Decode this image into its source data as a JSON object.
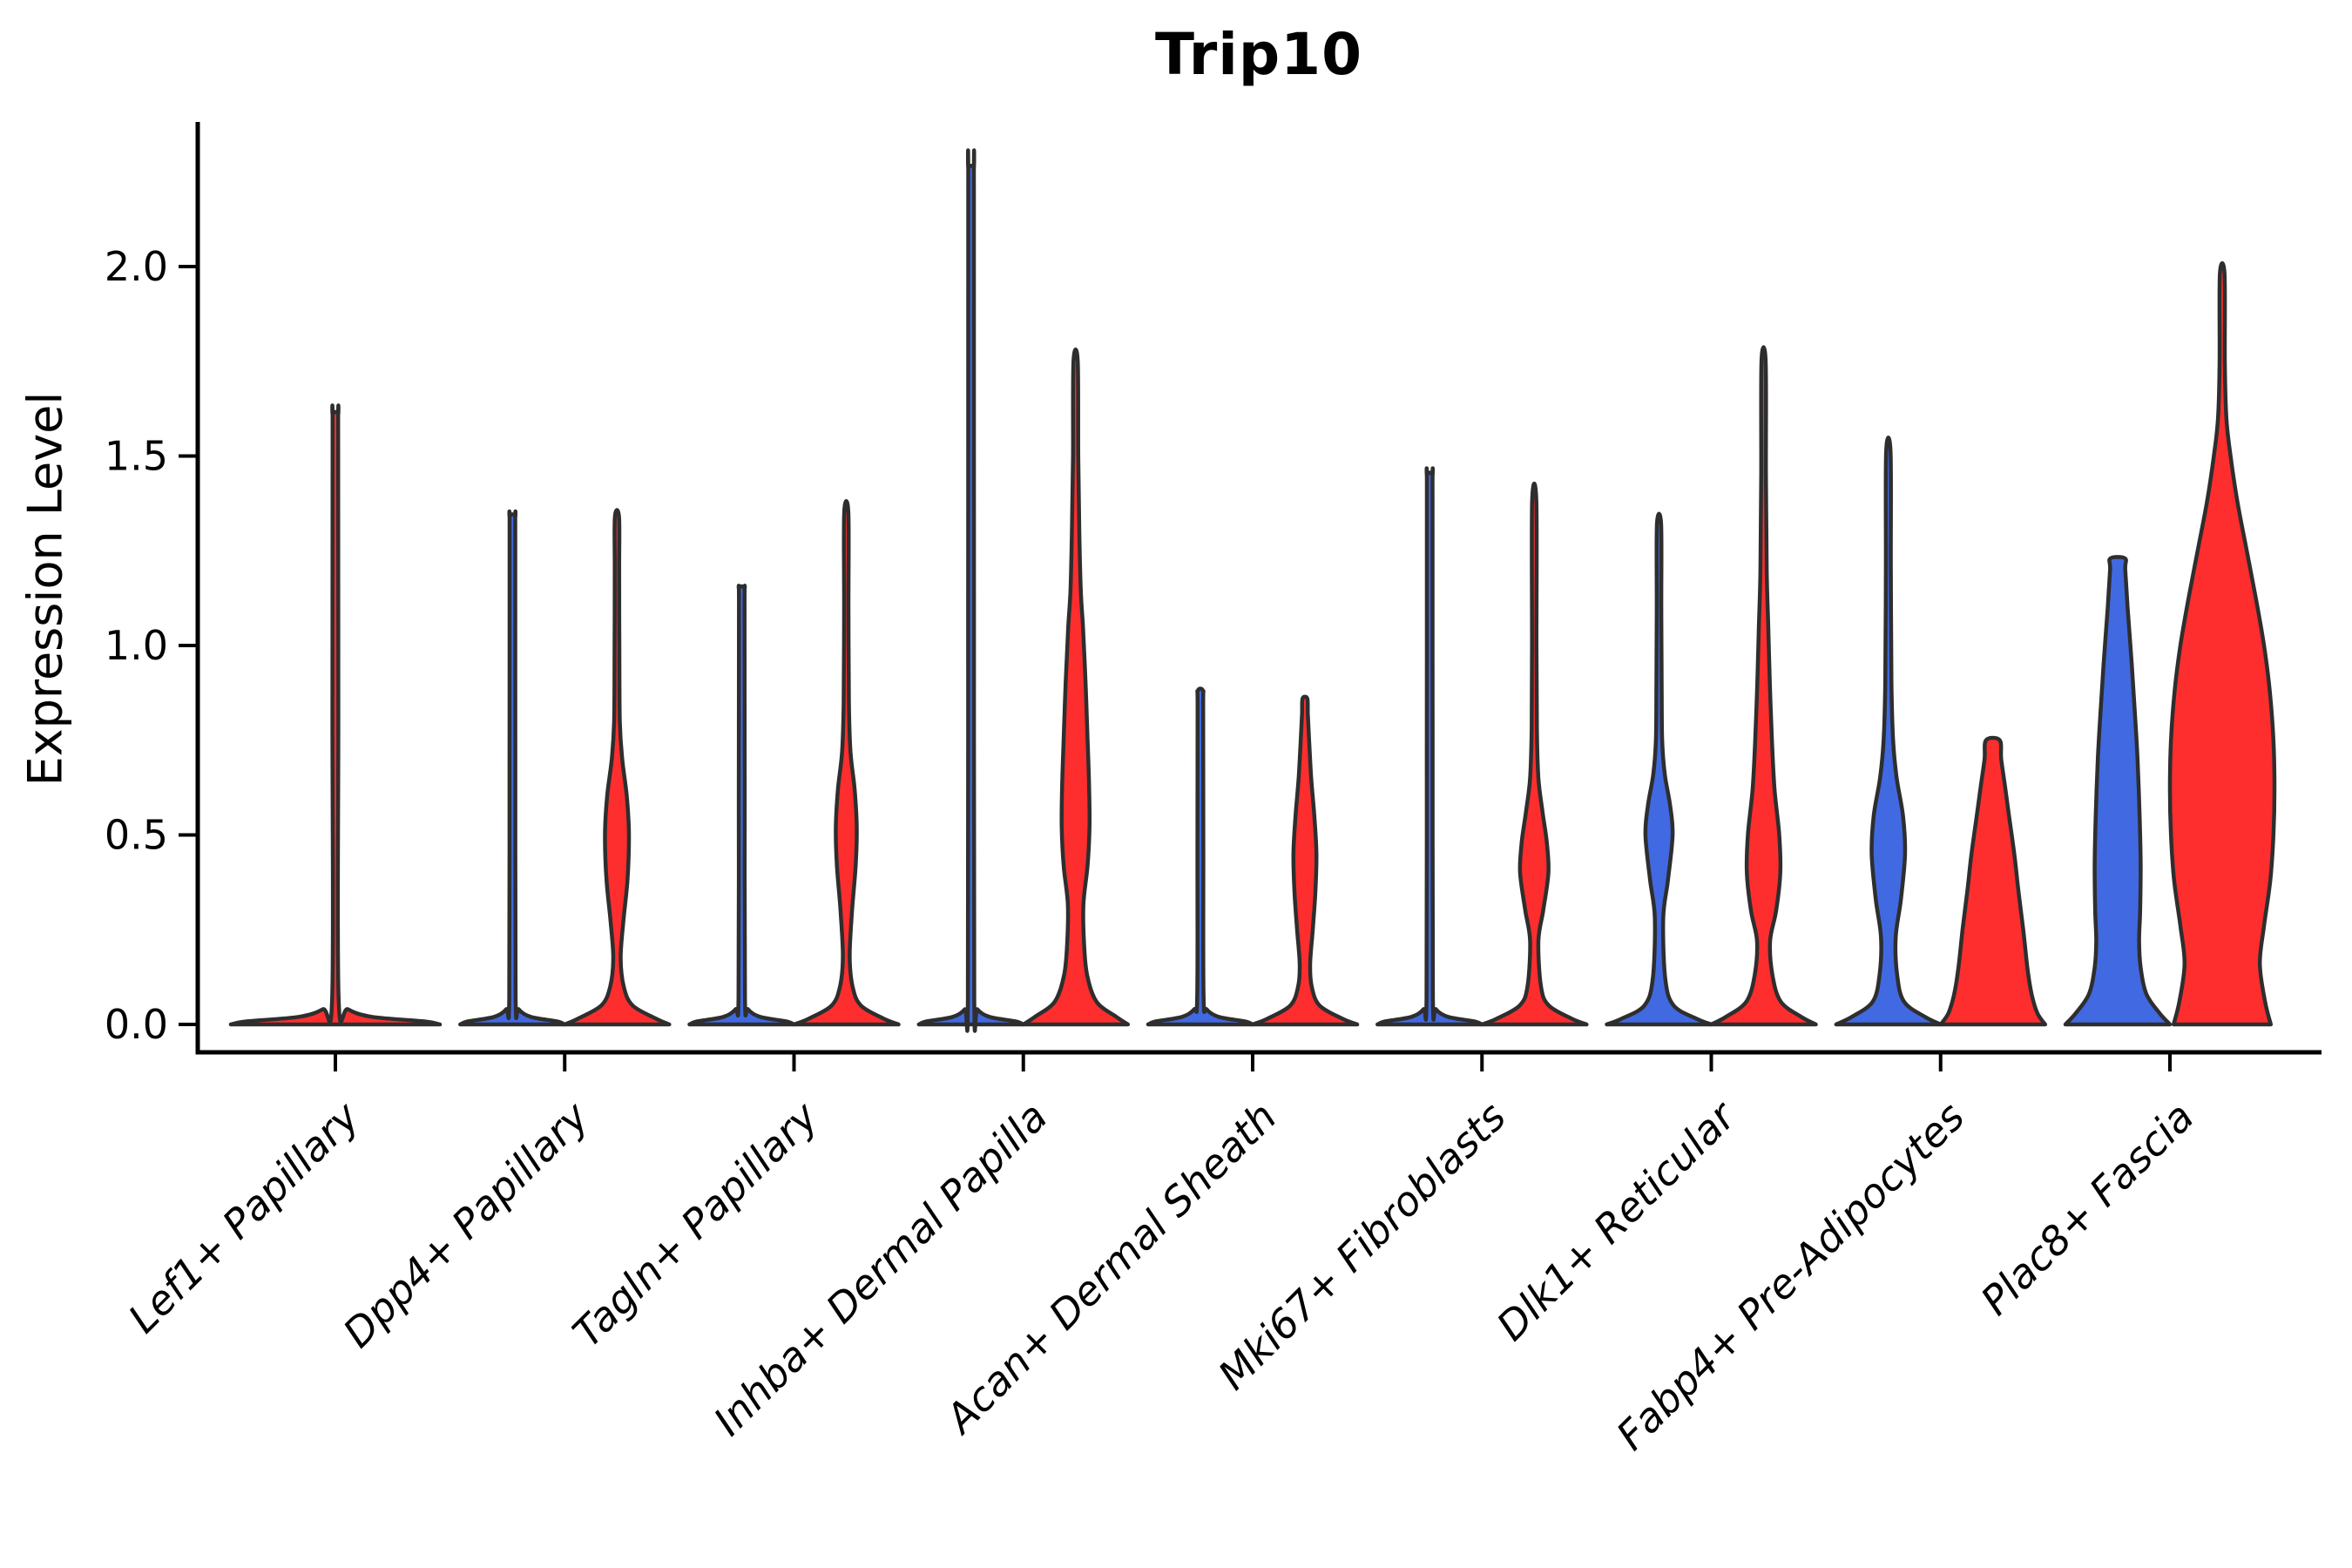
{
  "chart_data": {
    "type": "violin",
    "title": "Trip10",
    "ylabel": "Expression Level",
    "xlabel": "",
    "grid": false,
    "legend_position": "none",
    "ylim": [
      -0.08,
      2.38
    ],
    "y_ticks": [
      {
        "label": "0.0",
        "value": 0.0
      },
      {
        "label": "0.5",
        "value": 0.5
      },
      {
        "label": "1.0",
        "value": 1.0
      },
      {
        "label": "1.5",
        "value": 1.5
      },
      {
        "label": "2.0",
        "value": 2.0
      }
    ],
    "categories": [
      "Lef1+ Papillary",
      "Dpp4+ Papillary",
      "Tagln+ Papillary",
      "Inhba+ Dermal Papilla",
      "Acan+ Dermal Sheath",
      "Mki67+ Fibroblasts",
      "Dlk1+ Reticular",
      "Fabp4+ Pre-Adipocytes",
      "Plac8+ Fascia"
    ],
    "split_colors": {
      "blue": "#4169E1",
      "red": "#FF2E2E"
    },
    "outline_color": "#2e2e2e",
    "axis_color": "#000000",
    "violins": [
      {
        "cat": 0,
        "pos": "single",
        "color": "red",
        "top": 1.61,
        "profile": "spike"
      },
      {
        "cat": 1,
        "pos": "left",
        "color": "blue",
        "top": 1.34,
        "profile": "spike"
      },
      {
        "cat": 1,
        "pos": "right",
        "color": "red",
        "top": 1.34,
        "profile": [
          [
            0,
            1.0
          ],
          [
            0.015,
            0.75
          ],
          [
            0.05,
            0.3
          ],
          [
            0.1,
            0.13
          ],
          [
            0.175,
            0.07
          ],
          [
            0.27,
            0.12
          ],
          [
            0.38,
            0.2
          ],
          [
            0.5,
            0.23
          ],
          [
            0.6,
            0.19
          ],
          [
            0.7,
            0.1
          ],
          [
            0.8,
            0.055
          ],
          [
            1.0,
            0.045
          ],
          [
            1.2,
            0.042
          ],
          [
            1.34,
            0.04
          ]
        ]
      },
      {
        "cat": 2,
        "pos": "left",
        "color": "blue",
        "top": 1.15,
        "profile": "spike"
      },
      {
        "cat": 2,
        "pos": "right",
        "color": "red",
        "top": 1.35,
        "profile": [
          [
            0,
            1.0
          ],
          [
            0.015,
            0.72
          ],
          [
            0.05,
            0.28
          ],
          [
            0.1,
            0.12
          ],
          [
            0.18,
            0.065
          ],
          [
            0.3,
            0.11
          ],
          [
            0.42,
            0.18
          ],
          [
            0.52,
            0.2
          ],
          [
            0.62,
            0.16
          ],
          [
            0.72,
            0.08
          ],
          [
            0.85,
            0.05
          ],
          [
            1.1,
            0.042
          ],
          [
            1.35,
            0.04
          ]
        ]
      },
      {
        "cat": 3,
        "pos": "left",
        "color": "blue",
        "top": 2.26,
        "profile": "spike"
      },
      {
        "cat": 3,
        "pos": "right",
        "color": "red",
        "top": 1.75,
        "profile": [
          [
            0,
            1.0
          ],
          [
            0.02,
            0.78
          ],
          [
            0.06,
            0.4
          ],
          [
            0.13,
            0.22
          ],
          [
            0.22,
            0.16
          ],
          [
            0.32,
            0.15
          ],
          [
            0.42,
            0.23
          ],
          [
            0.52,
            0.265
          ],
          [
            0.62,
            0.26
          ],
          [
            0.75,
            0.23
          ],
          [
            0.9,
            0.19
          ],
          [
            1.05,
            0.14
          ],
          [
            1.14,
            0.1
          ],
          [
            1.3,
            0.07
          ],
          [
            1.5,
            0.05
          ],
          [
            1.75,
            0.04
          ]
        ]
      },
      {
        "cat": 4,
        "pos": "left",
        "color": "blue",
        "top": 0.88,
        "profile": "spike"
      },
      {
        "cat": 4,
        "pos": "right",
        "color": "red",
        "top": 0.86,
        "profile": [
          [
            0,
            1.0
          ],
          [
            0.015,
            0.72
          ],
          [
            0.05,
            0.28
          ],
          [
            0.1,
            0.13
          ],
          [
            0.16,
            0.1
          ],
          [
            0.25,
            0.15
          ],
          [
            0.35,
            0.2
          ],
          [
            0.45,
            0.22
          ],
          [
            0.55,
            0.18
          ],
          [
            0.65,
            0.12
          ],
          [
            0.75,
            0.08
          ],
          [
            0.82,
            0.055
          ],
          [
            0.86,
            0.045
          ]
        ]
      },
      {
        "cat": 5,
        "pos": "left",
        "color": "blue",
        "top": 1.45,
        "profile": "spike"
      },
      {
        "cat": 5,
        "pos": "right",
        "color": "red",
        "top": 1.38,
        "profile": [
          [
            0,
            1.0
          ],
          [
            0.015,
            0.72
          ],
          [
            0.05,
            0.28
          ],
          [
            0.1,
            0.13
          ],
          [
            0.22,
            0.08
          ],
          [
            0.3,
            0.17
          ],
          [
            0.4,
            0.27
          ],
          [
            0.48,
            0.24
          ],
          [
            0.56,
            0.16
          ],
          [
            0.65,
            0.08
          ],
          [
            0.78,
            0.05
          ],
          [
            1.0,
            0.043
          ],
          [
            1.38,
            0.04
          ]
        ]
      },
      {
        "cat": 6,
        "pos": "left",
        "color": "blue",
        "top": 1.32,
        "profile": [
          [
            0,
            1.0
          ],
          [
            0.015,
            0.72
          ],
          [
            0.05,
            0.28
          ],
          [
            0.12,
            0.12
          ],
          [
            0.28,
            0.08
          ],
          [
            0.38,
            0.17
          ],
          [
            0.5,
            0.26
          ],
          [
            0.58,
            0.21
          ],
          [
            0.66,
            0.11
          ],
          [
            0.75,
            0.06
          ],
          [
            0.9,
            0.05
          ],
          [
            1.1,
            0.044
          ],
          [
            1.32,
            0.04
          ]
        ]
      },
      {
        "cat": 6,
        "pos": "right",
        "color": "red",
        "top": 1.75,
        "profile": [
          [
            0,
            1.0
          ],
          [
            0.02,
            0.72
          ],
          [
            0.06,
            0.33
          ],
          [
            0.13,
            0.17
          ],
          [
            0.22,
            0.125
          ],
          [
            0.3,
            0.24
          ],
          [
            0.4,
            0.32
          ],
          [
            0.5,
            0.3
          ],
          [
            0.62,
            0.21
          ],
          [
            0.75,
            0.16
          ],
          [
            0.9,
            0.12
          ],
          [
            1.05,
            0.09
          ],
          [
            1.2,
            0.06
          ],
          [
            1.45,
            0.045
          ],
          [
            1.75,
            0.04
          ]
        ]
      },
      {
        "cat": 7,
        "pos": "left",
        "color": "blue",
        "top": 1.51,
        "profile": [
          [
            0,
            1.0
          ],
          [
            0.02,
            0.7
          ],
          [
            0.06,
            0.3
          ],
          [
            0.13,
            0.17
          ],
          [
            0.23,
            0.14
          ],
          [
            0.33,
            0.24
          ],
          [
            0.45,
            0.32
          ],
          [
            0.55,
            0.28
          ],
          [
            0.65,
            0.16
          ],
          [
            0.75,
            0.09
          ],
          [
            0.9,
            0.06
          ],
          [
            1.2,
            0.047
          ],
          [
            1.51,
            0.042
          ]
        ]
      },
      {
        "cat": 7,
        "pos": "right",
        "color": "red",
        "top": 0.75,
        "flat_top": true,
        "profile": [
          [
            0,
            1.0
          ],
          [
            0.03,
            0.85
          ],
          [
            0.08,
            0.74
          ],
          [
            0.15,
            0.66
          ],
          [
            0.25,
            0.58
          ],
          [
            0.35,
            0.49
          ],
          [
            0.45,
            0.41
          ],
          [
            0.55,
            0.31
          ],
          [
            0.63,
            0.23
          ],
          [
            0.7,
            0.16
          ],
          [
            0.75,
            0.13
          ]
        ]
      },
      {
        "cat": 8,
        "pos": "left",
        "color": "blue",
        "top": 1.23,
        "flat_top": true,
        "profile": [
          [
            0,
            1.0
          ],
          [
            0.03,
            0.8
          ],
          [
            0.08,
            0.55
          ],
          [
            0.15,
            0.44
          ],
          [
            0.22,
            0.41
          ],
          [
            0.3,
            0.43
          ],
          [
            0.42,
            0.44
          ],
          [
            0.55,
            0.42
          ],
          [
            0.7,
            0.38
          ],
          [
            0.82,
            0.33
          ],
          [
            0.95,
            0.27
          ],
          [
            1.1,
            0.19
          ],
          [
            1.2,
            0.145
          ],
          [
            1.23,
            0.14
          ]
        ]
      },
      {
        "cat": 8,
        "pos": "right",
        "color": "red",
        "top": 1.98,
        "profile": [
          [
            0,
            0.93
          ],
          [
            0.06,
            0.82
          ],
          [
            0.16,
            0.72
          ],
          [
            0.26,
            0.8
          ],
          [
            0.38,
            0.92
          ],
          [
            0.5,
            0.98
          ],
          [
            0.62,
            1.0
          ],
          [
            0.75,
            0.98
          ],
          [
            0.88,
            0.91
          ],
          [
            1.0,
            0.8
          ],
          [
            1.12,
            0.65
          ],
          [
            1.25,
            0.47
          ],
          [
            1.38,
            0.29
          ],
          [
            1.5,
            0.16
          ],
          [
            1.6,
            0.08
          ],
          [
            1.75,
            0.05
          ],
          [
            1.98,
            0.045
          ]
        ]
      }
    ]
  }
}
